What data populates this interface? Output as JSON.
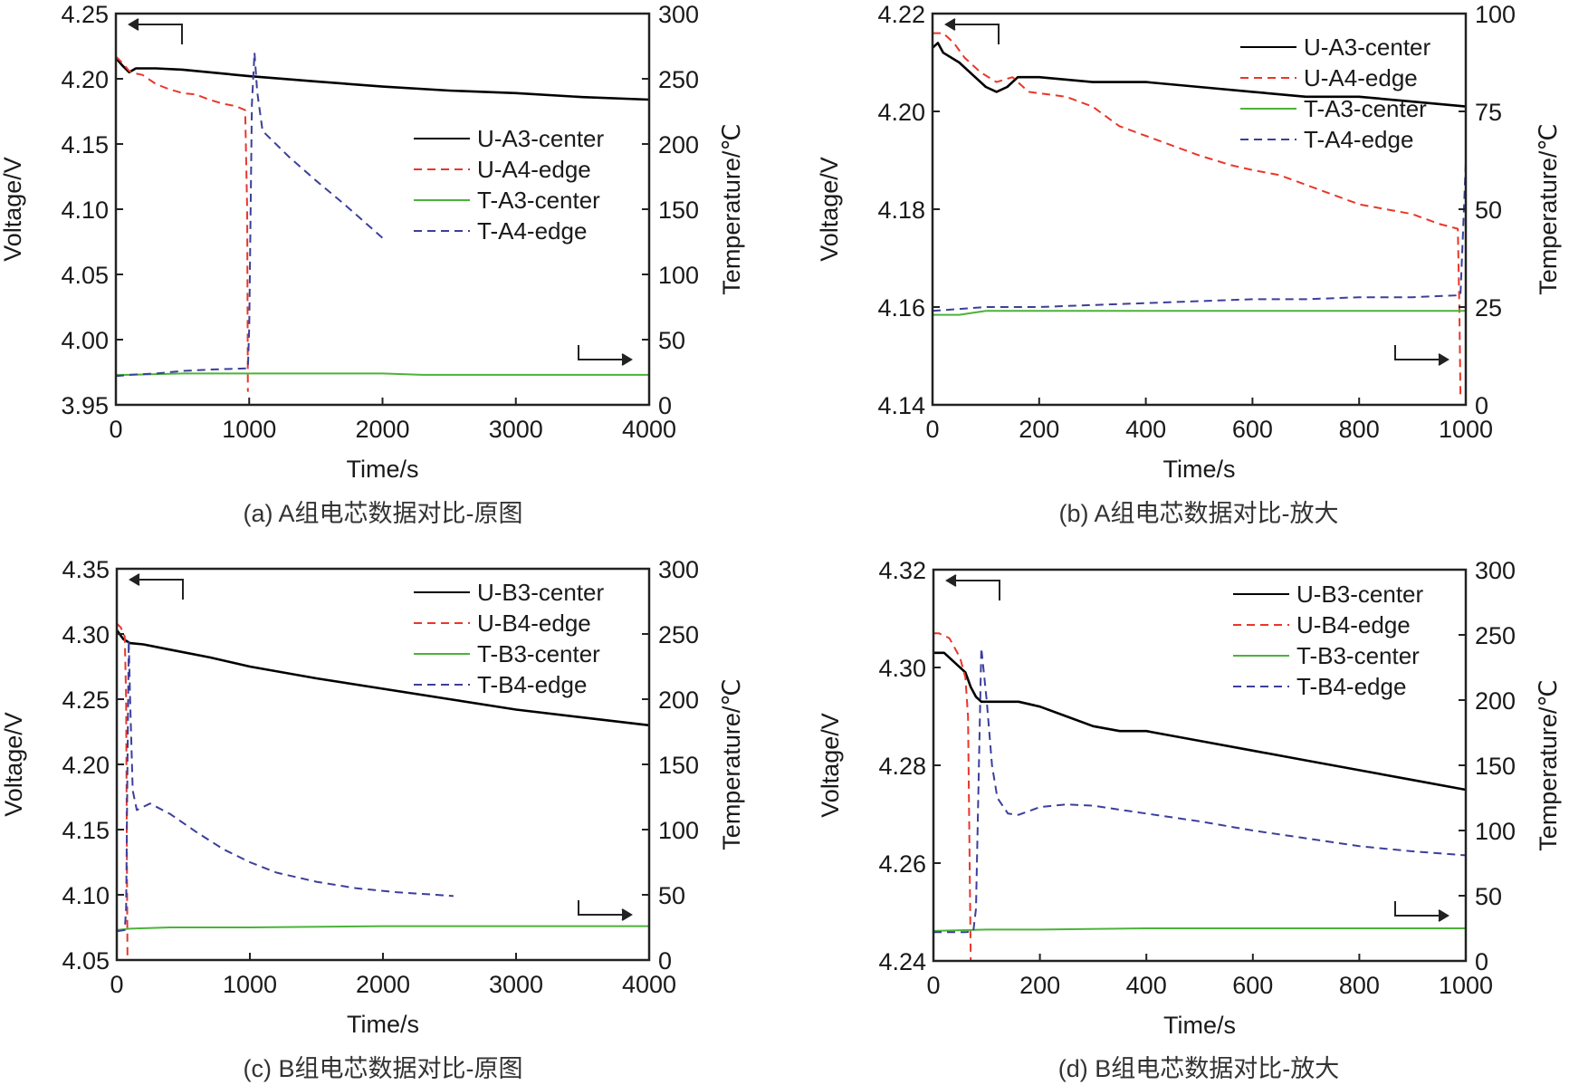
{
  "figure": {
    "panel_captions": [
      "(a) A组电芯数据对比-原图",
      "(b) A组电芯数据对比-放大",
      "(c) B组电芯数据对比-原图",
      "(d) B组电芯数据对比-放大"
    ]
  },
  "colors": {
    "voltage_center": "#000000",
    "voltage_edge": "#e8372a",
    "temp_center": "#4bb33a",
    "temp_edge": "#3b3f9a",
    "axis": "#222222"
  },
  "chart_data": [
    {
      "id": "a",
      "type": "line",
      "title": "",
      "caption": "(a) A组电芯数据对比-原图",
      "xlabel": "Time/s",
      "ylabel": "Voltage/V",
      "y2label": "Temperature/℃",
      "xlim": [
        0,
        4000
      ],
      "ylim": [
        3.95,
        4.25
      ],
      "y2lim": [
        0,
        300
      ],
      "xticks": [
        "0",
        "1000",
        "2000",
        "3000",
        "4000"
      ],
      "yticks": [
        "3.95",
        "4.00",
        "4.05",
        "4.10",
        "4.15",
        "4.20",
        "4.25"
      ],
      "y2ticks": [
        "0",
        "50",
        "100",
        "150",
        "200",
        "250",
        "300"
      ],
      "grid": false,
      "legend_position": "center-right",
      "annotations": [
        "left arrow: voltage axis",
        "right arrow: temperature axis"
      ],
      "series": [
        {
          "name": "U-A3-center",
          "axis": "left",
          "style": "solid",
          "color": "voltage_center",
          "x": [
            0,
            50,
            100,
            150,
            300,
            500,
            1000,
            1500,
            2000,
            2500,
            3000,
            3500,
            4000
          ],
          "y": [
            4.216,
            4.21,
            4.205,
            4.208,
            4.208,
            4.207,
            4.202,
            4.198,
            4.194,
            4.191,
            4.189,
            4.186,
            4.184
          ]
        },
        {
          "name": "U-A4-edge",
          "axis": "left",
          "style": "dashed",
          "color": "voltage_edge",
          "x": [
            0,
            50,
            100,
            150,
            200,
            300,
            400,
            500,
            600,
            700,
            800,
            900,
            970,
            985,
            990
          ],
          "y": [
            4.217,
            4.212,
            4.206,
            4.204,
            4.203,
            4.196,
            4.192,
            4.189,
            4.188,
            4.184,
            4.181,
            4.179,
            4.176,
            4.1,
            3.96
          ]
        },
        {
          "name": "T-A3-center",
          "axis": "right",
          "style": "solid",
          "color": "temp_center",
          "x": [
            0,
            100,
            500,
            1000,
            2000,
            2300,
            3000,
            4000
          ],
          "y": [
            23,
            23,
            24,
            24,
            24,
            23,
            23,
            23
          ]
        },
        {
          "name": "T-A4-edge",
          "axis": "right",
          "style": "dashed",
          "color": "temp_edge",
          "x": [
            0,
            100,
            300,
            500,
            700,
            990,
            1000,
            1020,
            1040,
            1060,
            1100,
            1300,
            1500,
            1700,
            1900,
            2000
          ],
          "y": [
            22,
            23,
            24,
            26,
            27,
            28,
            60,
            230,
            270,
            240,
            210,
            190,
            172,
            155,
            137,
            128
          ]
        }
      ]
    },
    {
      "id": "b",
      "type": "line",
      "title": "",
      "caption": "(b) A组电芯数据对比-放大",
      "xlabel": "Time/s",
      "ylabel": "Voltage/V",
      "y2label": "Temperature/℃",
      "xlim": [
        0,
        1000
      ],
      "ylim": [
        4.14,
        4.22
      ],
      "y2lim": [
        0,
        100
      ],
      "xticks": [
        "0",
        "200",
        "400",
        "600",
        "800",
        "1000"
      ],
      "yticks": [
        "4.14",
        "4.16",
        "4.18",
        "4.20",
        "4.22"
      ],
      "y2ticks": [
        "0",
        "25",
        "50",
        "75",
        "100"
      ],
      "grid": false,
      "legend_position": "top-right",
      "annotations": [
        "left arrow: voltage axis",
        "right arrow: temperature axis"
      ],
      "series": [
        {
          "name": "U-A3-center",
          "axis": "left",
          "style": "solid",
          "color": "voltage_center",
          "x": [
            0,
            10,
            20,
            50,
            80,
            100,
            120,
            140,
            160,
            200,
            300,
            400,
            500,
            600,
            700,
            800,
            900,
            1000
          ],
          "y": [
            4.213,
            4.214,
            4.212,
            4.21,
            4.207,
            4.205,
            4.204,
            4.205,
            4.207,
            4.207,
            4.206,
            4.206,
            4.205,
            4.204,
            4.203,
            4.203,
            4.202,
            4.201
          ]
        },
        {
          "name": "U-A4-edge",
          "axis": "left",
          "style": "dashed",
          "color": "voltage_edge",
          "x": [
            0,
            20,
            40,
            60,
            90,
            120,
            150,
            180,
            250,
            300,
            350,
            400,
            450,
            500,
            560,
            600,
            650,
            700,
            750,
            800,
            850,
            900,
            950,
            985,
            988,
            990
          ],
          "y": [
            4.216,
            4.216,
            4.214,
            4.211,
            4.208,
            4.206,
            4.207,
            4.204,
            4.203,
            4.201,
            4.197,
            4.195,
            4.193,
            4.191,
            4.189,
            4.188,
            4.187,
            4.185,
            4.183,
            4.181,
            4.18,
            4.179,
            4.177,
            4.176,
            4.16,
            4.142
          ]
        },
        {
          "name": "T-A3-center",
          "axis": "right",
          "style": "solid",
          "color": "temp_center",
          "x": [
            0,
            50,
            100,
            150,
            300,
            500,
            1000
          ],
          "y": [
            23,
            23,
            24,
            24,
            24,
            24,
            24
          ]
        },
        {
          "name": "T-A4-edge",
          "axis": "right",
          "style": "dashed",
          "color": "temp_edge",
          "x": [
            0,
            100,
            200,
            300,
            400,
            500,
            600,
            700,
            800,
            900,
            990,
            995,
            1000
          ],
          "y": [
            24,
            25,
            25,
            25.5,
            26,
            26.5,
            27,
            27,
            27.5,
            27.5,
            28,
            45,
            62
          ]
        }
      ]
    },
    {
      "id": "c",
      "type": "line",
      "title": "",
      "caption": "(c) B组电芯数据对比-原图",
      "xlabel": "Time/s",
      "ylabel": "Voltage/V",
      "y2label": "Temperature/℃",
      "xlim": [
        0,
        4000
      ],
      "ylim": [
        4.05,
        4.35
      ],
      "y2lim": [
        0,
        300
      ],
      "xticks": [
        "0",
        "1000",
        "2000",
        "3000",
        "4000"
      ],
      "yticks": [
        "4.05",
        "4.10",
        "4.15",
        "4.20",
        "4.25",
        "4.30",
        "4.35"
      ],
      "y2ticks": [
        "0",
        "50",
        "100",
        "150",
        "200",
        "250",
        "300"
      ],
      "grid": false,
      "legend_position": "top-right",
      "annotations": [
        "left arrow: voltage axis",
        "right arrow: temperature axis"
      ],
      "series": [
        {
          "name": "U-B3-center",
          "axis": "left",
          "style": "solid",
          "color": "voltage_center",
          "x": [
            0,
            50,
            100,
            200,
            400,
            700,
            1000,
            1500,
            2000,
            2500,
            3000,
            3500,
            4000
          ],
          "y": [
            4.303,
            4.296,
            4.293,
            4.292,
            4.288,
            4.282,
            4.275,
            4.266,
            4.258,
            4.25,
            4.242,
            4.236,
            4.23
          ]
        },
        {
          "name": "U-B4-edge",
          "axis": "left",
          "style": "dashed",
          "color": "voltage_edge",
          "x": [
            0,
            30,
            60,
            70,
            75,
            80
          ],
          "y": [
            4.308,
            4.305,
            4.298,
            4.25,
            4.15,
            4.05
          ]
        },
        {
          "name": "T-B3-center",
          "axis": "right",
          "style": "solid",
          "color": "temp_center",
          "x": [
            0,
            100,
            400,
            1000,
            2000,
            3000,
            4000
          ],
          "y": [
            23,
            24,
            25,
            25,
            26,
            26,
            26
          ]
        },
        {
          "name": "T-B4-edge",
          "axis": "right",
          "style": "dashed",
          "color": "temp_edge",
          "x": [
            0,
            60,
            70,
            80,
            90,
            100,
            120,
            150,
            250,
            400,
            600,
            800,
            1000,
            1200,
            1500,
            1800,
            2100,
            2400,
            2530
          ],
          "y": [
            22,
            23,
            40,
            150,
            245,
            200,
            130,
            115,
            120,
            112,
            98,
            85,
            75,
            67,
            60,
            55,
            52,
            50,
            49
          ]
        }
      ]
    },
    {
      "id": "d",
      "type": "line",
      "title": "",
      "caption": "(d) B组电芯数据对比-放大",
      "xlabel": "Time/s",
      "ylabel": "Voltage/V",
      "y2label": "Temperature/℃",
      "xlim": [
        0,
        1000
      ],
      "ylim": [
        4.24,
        4.32
      ],
      "y2lim": [
        0,
        300
      ],
      "xticks": [
        "0",
        "200",
        "400",
        "600",
        "800",
        "1000"
      ],
      "yticks": [
        "4.24",
        "4.26",
        "4.28",
        "4.30",
        "4.32"
      ],
      "y2ticks": [
        "0",
        "50",
        "100",
        "150",
        "200",
        "250",
        "300"
      ],
      "grid": false,
      "legend_position": "top-right",
      "annotations": [
        "left arrow: voltage axis",
        "right arrow: temperature axis"
      ],
      "series": [
        {
          "name": "U-B3-center",
          "axis": "left",
          "style": "solid",
          "color": "voltage_center",
          "x": [
            0,
            20,
            40,
            60,
            70,
            80,
            90,
            100,
            120,
            140,
            160,
            200,
            250,
            300,
            350,
            400,
            450,
            500,
            600,
            700,
            800,
            900,
            1000
          ],
          "y": [
            4.303,
            4.303,
            4.301,
            4.299,
            4.296,
            4.294,
            4.293,
            4.293,
            4.293,
            4.293,
            4.293,
            4.292,
            4.29,
            4.288,
            4.287,
            4.287,
            4.286,
            4.285,
            4.283,
            4.281,
            4.279,
            4.277,
            4.275
          ]
        },
        {
          "name": "U-B4-edge",
          "axis": "left",
          "style": "dashed",
          "color": "voltage_edge",
          "x": [
            0,
            10,
            30,
            50,
            60,
            65,
            68,
            70
          ],
          "y": [
            4.307,
            4.307,
            4.306,
            4.302,
            4.298,
            4.29,
            4.26,
            4.24
          ]
        },
        {
          "name": "T-B3-center",
          "axis": "right",
          "style": "solid",
          "color": "temp_center",
          "x": [
            0,
            100,
            200,
            400,
            800,
            1000
          ],
          "y": [
            23,
            24,
            24,
            25,
            25,
            25
          ]
        },
        {
          "name": "T-B4-edge",
          "axis": "right",
          "style": "dashed",
          "color": "temp_edge",
          "x": [
            0,
            60,
            75,
            80,
            90,
            100,
            110,
            120,
            140,
            160,
            200,
            250,
            300,
            350,
            400,
            500,
            600,
            700,
            800,
            900,
            1000
          ],
          "y": [
            22,
            22,
            23,
            40,
            240,
            200,
            150,
            125,
            113,
            112,
            118,
            120,
            119,
            116,
            113,
            107,
            100,
            94,
            88,
            84,
            81
          ]
        }
      ]
    }
  ]
}
